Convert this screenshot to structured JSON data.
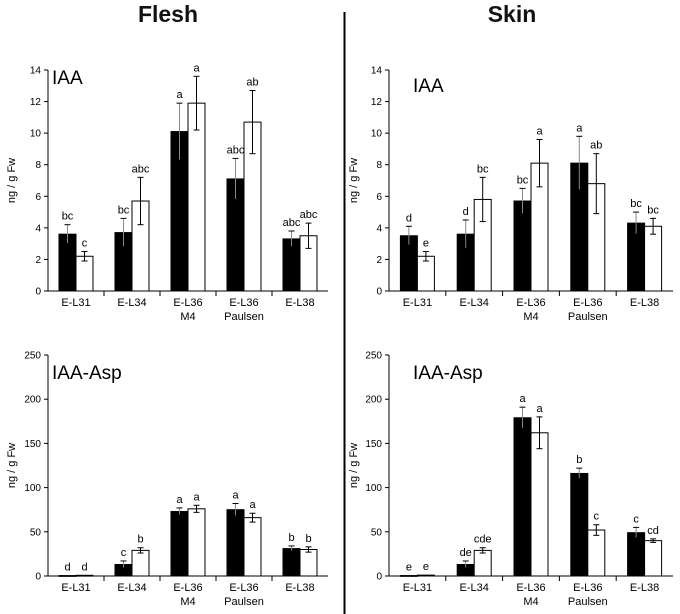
{
  "columns": [
    "Flesh",
    "Skin"
  ],
  "colors": {
    "series_black": "#000000",
    "series_white": "#ffffff",
    "axis": "#000000"
  },
  "chart_data": [
    {
      "id": "flesh-iaa",
      "type": "bar",
      "column": "Flesh",
      "title": "IAA",
      "ylabel": "ng / g Fw",
      "ylim": [
        0,
        14
      ],
      "yticks": [
        0,
        2,
        4,
        6,
        8,
        10,
        12,
        14
      ],
      "categories": [
        [
          "E-L31"
        ],
        [
          "E-L34"
        ],
        [
          "E-L36",
          "M4"
        ],
        [
          "E-L36",
          "Paulsen"
        ],
        [
          "E-L38"
        ]
      ],
      "series": [
        {
          "name": "black",
          "values": [
            3.6,
            3.7,
            10.1,
            7.1,
            3.3
          ],
          "errors": [
            0.6,
            0.9,
            1.8,
            1.3,
            0.5
          ],
          "labels": [
            "bc",
            "bc",
            "a",
            "abc",
            "abc"
          ]
        },
        {
          "name": "white",
          "values": [
            2.2,
            5.7,
            11.9,
            10.7,
            3.5
          ],
          "errors": [
            0.3,
            1.5,
            1.7,
            2.0,
            0.8
          ],
          "labels": [
            "c",
            "abc",
            "a",
            "ab",
            "abc"
          ]
        }
      ]
    },
    {
      "id": "skin-iaa",
      "type": "bar",
      "column": "Skin",
      "title": "IAA",
      "ylabel": "ng / g Fw",
      "ylim": [
        0,
        14
      ],
      "yticks": [
        0,
        2,
        4,
        6,
        8,
        10,
        12,
        14
      ],
      "categories": [
        [
          "E-L31"
        ],
        [
          "E-L34"
        ],
        [
          "E-L36",
          "M4"
        ],
        [
          "E-L36",
          "Paulsen"
        ],
        [
          "E-L38"
        ]
      ],
      "series": [
        {
          "name": "black",
          "values": [
            3.5,
            3.6,
            5.7,
            8.1,
            4.3
          ],
          "errors": [
            0.6,
            0.9,
            0.8,
            1.7,
            0.7
          ],
          "labels": [
            "d",
            "d",
            "bc",
            "a",
            "bc"
          ]
        },
        {
          "name": "white",
          "values": [
            2.2,
            5.8,
            8.1,
            6.8,
            4.1
          ],
          "errors": [
            0.3,
            1.4,
            1.5,
            1.9,
            0.5
          ],
          "labels": [
            "e",
            "bc",
            "a",
            "ab",
            "bc"
          ]
        }
      ]
    },
    {
      "id": "flesh-iaaasp",
      "type": "bar",
      "column": "Flesh",
      "title": "IAA-Asp",
      "ylabel": "ng / g Fw",
      "ylim": [
        0,
        250
      ],
      "yticks": [
        0,
        50,
        100,
        150,
        200,
        250
      ],
      "categories": [
        [
          "E-L31"
        ],
        [
          "E-L34"
        ],
        [
          "E-L36",
          "M4"
        ],
        [
          "E-L36",
          "Paulsen"
        ],
        [
          "E-L38"
        ]
      ],
      "series": [
        {
          "name": "black",
          "values": [
            0.5,
            13,
            73,
            75,
            31
          ],
          "errors": [
            0,
            4,
            4,
            7,
            3
          ],
          "labels": [
            "d",
            "c",
            "a",
            "a",
            "b"
          ]
        },
        {
          "name": "white",
          "values": [
            0.8,
            29,
            76,
            66,
            30
          ],
          "errors": [
            0,
            3,
            4,
            5,
            3
          ],
          "labels": [
            "d",
            "b",
            "a",
            "a",
            "b"
          ]
        }
      ]
    },
    {
      "id": "skin-iaaasp",
      "type": "bar",
      "column": "Skin",
      "title": "IAA-Asp",
      "ylabel": "ng / g Fw",
      "ylim": [
        0,
        250
      ],
      "yticks": [
        0,
        50,
        100,
        150,
        200,
        250
      ],
      "categories": [
        [
          "E-L31"
        ],
        [
          "E-L34"
        ],
        [
          "E-L36",
          "M4"
        ],
        [
          "E-L36",
          "Paulsen"
        ],
        [
          "E-L38"
        ]
      ],
      "series": [
        {
          "name": "black",
          "values": [
            0.5,
            13,
            179,
            116,
            49
          ],
          "errors": [
            0,
            4,
            12,
            6,
            6
          ],
          "labels": [
            "e",
            "de",
            "a",
            "b",
            "c"
          ]
        },
        {
          "name": "white",
          "values": [
            1,
            29,
            162,
            52,
            40
          ],
          "errors": [
            0,
            3,
            18,
            6,
            2
          ],
          "labels": [
            "e",
            "cde",
            "a",
            "c",
            "cd"
          ]
        }
      ]
    }
  ]
}
